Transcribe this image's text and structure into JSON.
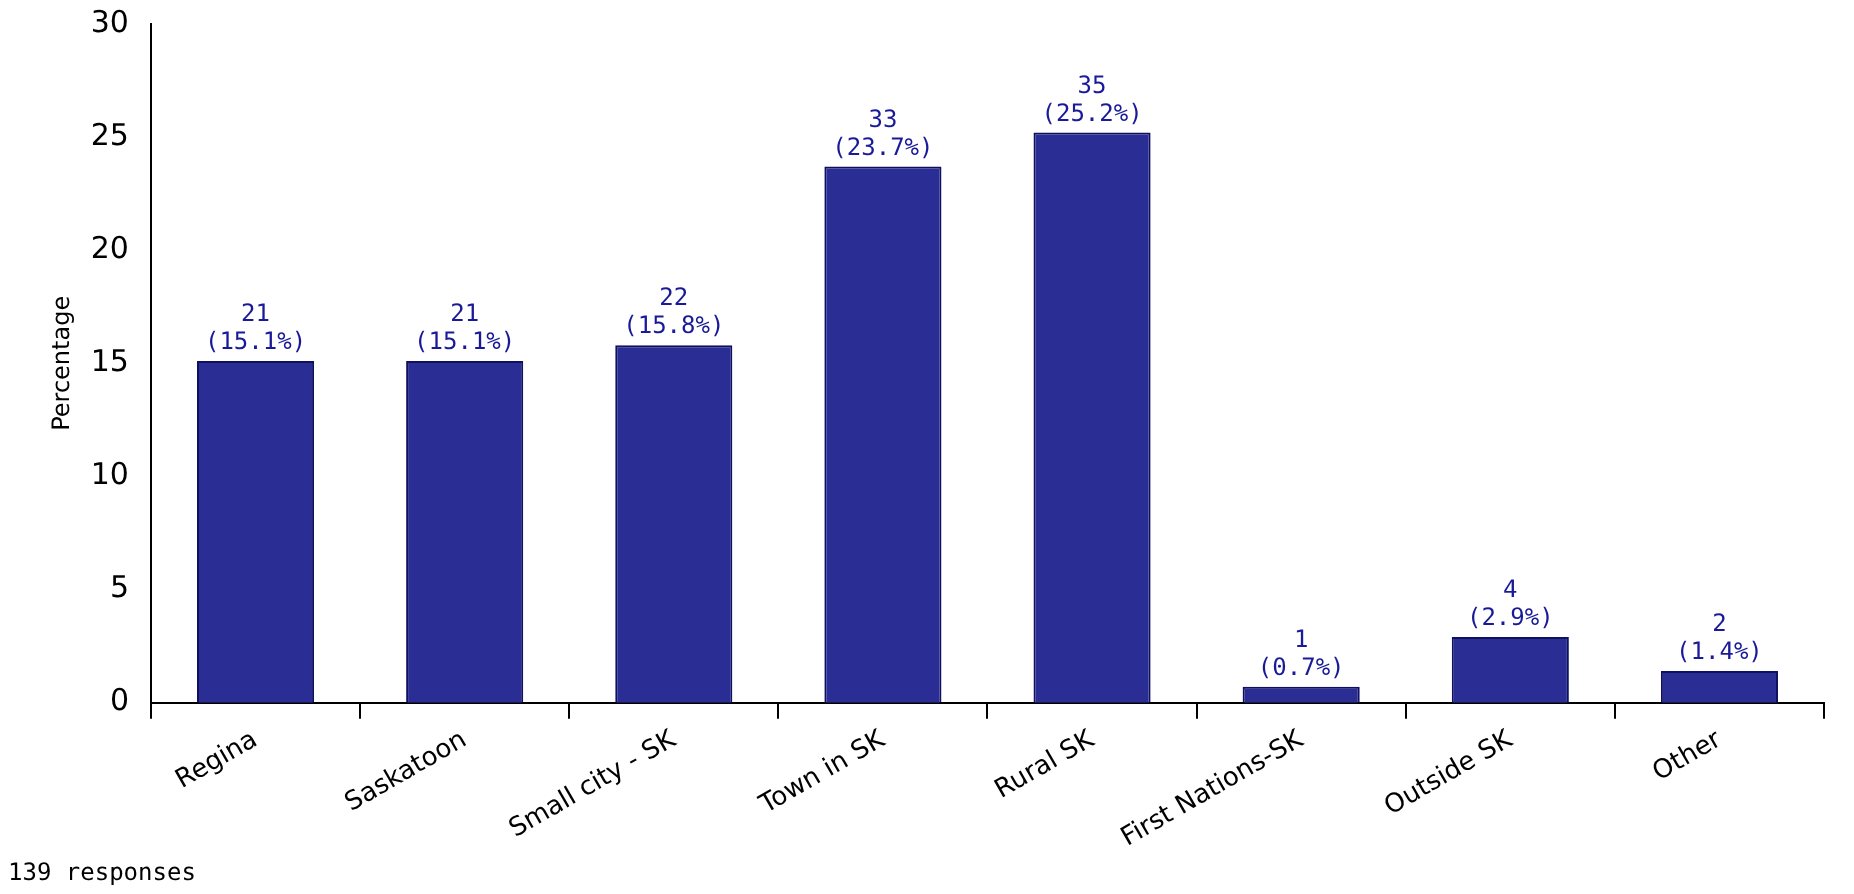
{
  "chart_data": {
    "type": "bar",
    "ylabel": "Percentage",
    "categories": [
      "Regina",
      "Saskatoon",
      "Small city - SK",
      "Town in SK",
      "Rural SK",
      "First Nations-SK",
      "Outside SK",
      "Other"
    ],
    "values": [
      15.1,
      15.1,
      15.8,
      23.7,
      25.2,
      0.7,
      2.9,
      1.4
    ],
    "value_labels": [
      "21\n(15.1%)",
      "21\n(15.1%)",
      "22\n(15.8%)",
      "33\n(23.7%)",
      "35\n(25.2%)",
      "1\n(0.7%)",
      "4\n(2.9%)",
      "2\n(1.4%)"
    ],
    "color": "#2a2e94",
    "ylim": [
      0,
      30
    ],
    "yticks": [
      0,
      5,
      10,
      15,
      20,
      25,
      30
    ],
    "annotations": [
      "139 responses"
    ]
  }
}
